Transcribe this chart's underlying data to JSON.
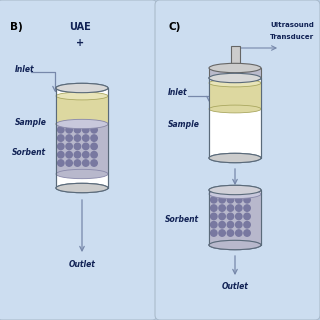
{
  "fig_bg": "#b8cfe8",
  "panel_bg": "#ccddf0",
  "panel_edge": "#aabbcc",
  "cylinder_ec": "#5a6a7a",
  "cylinder_lw": 0.8,
  "sample_color": "#ddd8a0",
  "sample_top_color": "#e8e4b0",
  "sorbent_bg": "#b8b8cc",
  "sorbent_dot": "#7878a0",
  "arrow_color": "#7788aa",
  "text_color": "#223366",
  "label_bold_color": "#112255",
  "panel_B": {
    "label": "B)",
    "uae_line1": "UAE",
    "uae_line2": "+",
    "inlet": "Inlet",
    "sample": "Sample",
    "sorbent": "Sorbent",
    "outlet": "Outlet"
  },
  "panel_C": {
    "label": "C)",
    "us_line1": "Ultrasound",
    "us_line2": "Transducer",
    "inlet": "Inlet",
    "sample": "Sample",
    "sorbent": "Sorbent",
    "outlet": "Outlet"
  }
}
